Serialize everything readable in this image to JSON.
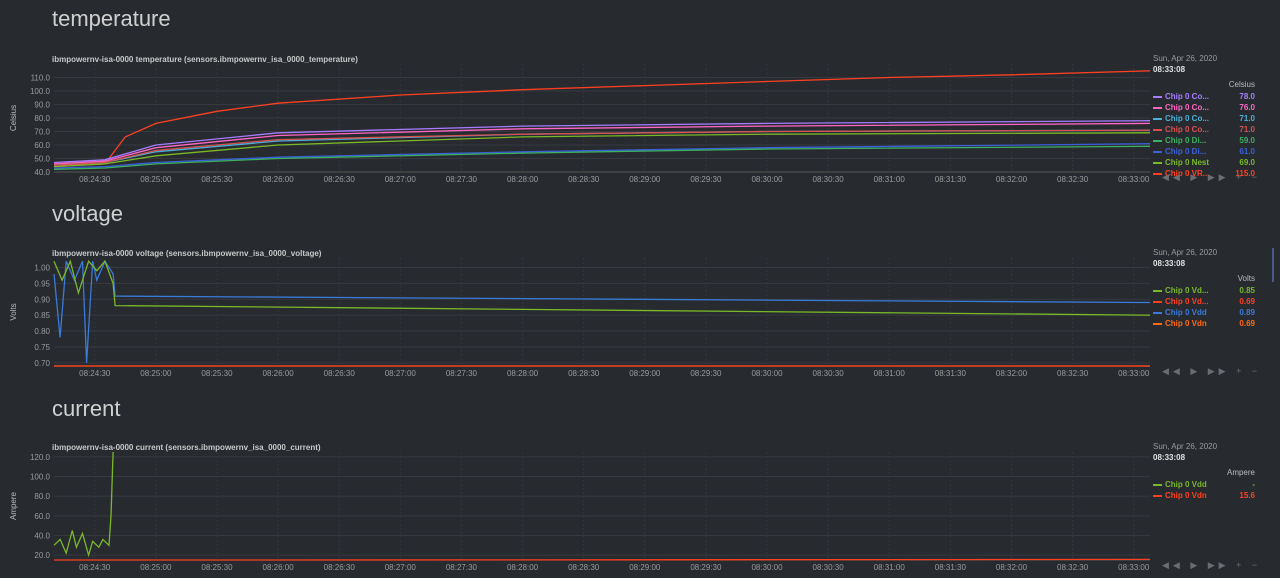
{
  "sections": [
    {
      "heading": "temperature",
      "chart_title": "ibmpowernv-isa-0000 temperature (sensors.ibmpowernv_isa_0000_temperature)",
      "legend": {
        "date": "Sun, Apr 26, 2020",
        "time": "08:33:08",
        "unit": "Celsius",
        "items": [
          {
            "name": "Chip 0 Co...",
            "value": "78.0",
            "color": "#a77cff"
          },
          {
            "name": "Chip 0 Co...",
            "value": "76.0",
            "color": "#ff66c4"
          },
          {
            "name": "Chip 0 Co...",
            "value": "71.0",
            "color": "#4ab0d8"
          },
          {
            "name": "Chip 0 Co...",
            "value": "71.0",
            "color": "#d85050"
          },
          {
            "name": "Chip 0 Di...",
            "value": "59.0",
            "color": "#3cb060"
          },
          {
            "name": "Chip 0 Di...",
            "value": "61.0",
            "color": "#3a60d8"
          },
          {
            "name": "Chip 0 Nest",
            "value": "69.0",
            "color": "#7ab828"
          },
          {
            "name": "Chip 0 VR...",
            "value": "115.0",
            "color": "#ff4020"
          }
        ]
      },
      "controls": "◀◀ ▶ ▶▶ + −"
    },
    {
      "heading": "voltage",
      "chart_title": "ibmpowernv-isa-0000 voltage (sensors.ibmpowernv_isa_0000_voltage)",
      "legend": {
        "date": "Sun, Apr 26, 2020",
        "time": "08:33:08",
        "unit": "Volts",
        "items": [
          {
            "name": "Chip 0 Vd...",
            "value": "0.85",
            "color": "#7ab828"
          },
          {
            "name": "Chip 0 Vd...",
            "value": "0.69",
            "color": "#ff4020"
          },
          {
            "name": "Chip 0 Vdd",
            "value": "0.89",
            "color": "#3a7ad8"
          },
          {
            "name": "Chip 0 Vdn",
            "value": "0.69",
            "color": "#ff6a10"
          }
        ]
      },
      "controls": "◀◀ ▶ ▶▶ + −"
    },
    {
      "heading": "current",
      "chart_title": "ibmpowernv-isa-0000 current (sensors.ibmpowernv_isa_0000_current)",
      "legend": {
        "date": "Sun, Apr 26, 2020",
        "time": "08:33:08",
        "unit": "Ampere",
        "items": [
          {
            "name": "Chip 0 Vdd",
            "value": "-",
            "color": "#7ab828"
          },
          {
            "name": "Chip 0 Vdn",
            "value": "15.6",
            "color": "#ff4020"
          }
        ]
      },
      "controls": "◀◀ ▶ ▶▶ + −"
    }
  ],
  "chart_data": [
    {
      "type": "line",
      "title": "ibmpowernv-isa-0000 temperature (sensors.ibmpowernv_isa_0000_temperature)",
      "ylabel": "Celsius",
      "ylim": [
        40,
        120
      ],
      "yticks": [
        "40.0",
        "50.0",
        "60.0",
        "70.0",
        "80.0",
        "90.0",
        "100.0",
        "110.0"
      ],
      "xticks": [
        "08:24:30",
        "08:25:00",
        "08:25:30",
        "08:26:00",
        "08:26:30",
        "08:27:00",
        "08:27:30",
        "08:28:00",
        "08:28:30",
        "08:29:00",
        "08:29:30",
        "08:30:00",
        "08:30:30",
        "08:31:00",
        "08:31:30",
        "08:32:00",
        "08:32:30",
        "08:33:00"
      ],
      "xlim": [
        "08:24:10",
        "08:33:08"
      ],
      "series": [
        {
          "name": "Chip 0 VR...",
          "color": "#ff4020",
          "x": [
            "08:24:10",
            "08:24:35",
            "08:24:45",
            "08:25:00",
            "08:25:30",
            "08:26:00",
            "08:27:00",
            "08:28:00",
            "08:29:00",
            "08:30:00",
            "08:31:00",
            "08:32:00",
            "08:33:08"
          ],
          "y": [
            44,
            46,
            66,
            76,
            85,
            91,
            97,
            101,
            104,
            107,
            110,
            112,
            115
          ]
        },
        {
          "name": "Chip 0 Co...",
          "color": "#a77cff",
          "x": [
            "08:24:10",
            "08:24:35",
            "08:25:00",
            "08:26:00",
            "08:28:00",
            "08:30:00",
            "08:33:08"
          ],
          "y": [
            47,
            49,
            60,
            69,
            74,
            76,
            78
          ]
        },
        {
          "name": "Chip 0 Co...",
          "color": "#ff66c4",
          "x": [
            "08:24:10",
            "08:24:35",
            "08:25:00",
            "08:26:00",
            "08:28:00",
            "08:30:00",
            "08:33:08"
          ],
          "y": [
            46,
            48,
            58,
            67,
            72,
            74,
            76
          ]
        },
        {
          "name": "Chip 0 Co...",
          "color": "#4ab0d8",
          "x": [
            "08:24:10",
            "08:24:35",
            "08:25:00",
            "08:26:00",
            "08:28:00",
            "08:30:00",
            "08:33:08"
          ],
          "y": [
            45,
            47,
            55,
            63,
            68,
            70,
            71
          ]
        },
        {
          "name": "Chip 0 Co...",
          "color": "#d85050",
          "x": [
            "08:24:10",
            "08:24:35",
            "08:25:00",
            "08:26:00",
            "08:28:00",
            "08:30:00",
            "08:33:08"
          ],
          "y": [
            45,
            47,
            56,
            64,
            68,
            70,
            71
          ]
        },
        {
          "name": "Chip 0 Nest",
          "color": "#7ab828",
          "x": [
            "08:24:10",
            "08:24:35",
            "08:25:00",
            "08:26:00",
            "08:28:00",
            "08:30:00",
            "08:33:08"
          ],
          "y": [
            44,
            46,
            52,
            60,
            66,
            68,
            69
          ]
        },
        {
          "name": "Chip 0 Di...",
          "color": "#3a60d8",
          "x": [
            "08:24:10",
            "08:24:35",
            "08:25:00",
            "08:26:00",
            "08:28:00",
            "08:30:00",
            "08:33:08"
          ],
          "y": [
            43,
            44,
            47,
            51,
            55,
            58,
            61
          ]
        },
        {
          "name": "Chip 0 Di...",
          "color": "#3cb060",
          "x": [
            "08:24:10",
            "08:24:35",
            "08:25:00",
            "08:26:00",
            "08:28:00",
            "08:30:00",
            "08:33:08"
          ],
          "y": [
            42,
            43,
            46,
            50,
            54,
            57,
            59
          ]
        }
      ]
    },
    {
      "type": "line",
      "title": "ibmpowernv-isa-0000 voltage (sensors.ibmpowernv_isa_0000_voltage)",
      "ylabel": "Volts",
      "ylim": [
        0.69,
        1.03
      ],
      "yticks": [
        "0.70",
        "0.75",
        "0.80",
        "0.85",
        "0.90",
        "0.95",
        "1.00"
      ],
      "xticks": [
        "08:24:30",
        "08:25:00",
        "08:25:30",
        "08:26:00",
        "08:26:30",
        "08:27:00",
        "08:27:30",
        "08:28:00",
        "08:28:30",
        "08:29:00",
        "08:29:30",
        "08:30:00",
        "08:30:30",
        "08:31:00",
        "08:31:30",
        "08:32:00",
        "08:32:30",
        "08:33:00"
      ],
      "xlim": [
        "08:24:10",
        "08:33:08"
      ],
      "series": [
        {
          "name": "Chip 0 Vdd",
          "color": "#3a7ad8",
          "x": [
            "08:24:10",
            "08:24:13",
            "08:24:16",
            "08:24:20",
            "08:24:24",
            "08:24:26",
            "08:24:29",
            "08:24:31",
            "08:24:35",
            "08:24:39",
            "08:24:40",
            "08:33:08"
          ],
          "y": [
            0.98,
            0.78,
            1.02,
            0.96,
            1.02,
            0.7,
            1.02,
            0.96,
            1.02,
            0.98,
            0.91,
            0.89
          ]
        },
        {
          "name": "Chip 0 Vd...",
          "color": "#7ab828",
          "x": [
            "08:24:10",
            "08:24:14",
            "08:24:18",
            "08:24:22",
            "08:24:27",
            "08:24:31",
            "08:24:35",
            "08:24:39",
            "08:24:40",
            "08:33:08"
          ],
          "y": [
            1.02,
            0.96,
            1.02,
            0.92,
            1.02,
            0.99,
            1.02,
            0.95,
            0.88,
            0.85
          ]
        },
        {
          "name": "Chip 0 Vdn",
          "color": "#ff6a10",
          "x": [
            "08:24:10",
            "08:33:08"
          ],
          "y": [
            0.69,
            0.69
          ]
        },
        {
          "name": "Chip 0 Vd...",
          "color": "#ff4020",
          "x": [
            "08:24:10",
            "08:33:08"
          ],
          "y": [
            0.69,
            0.69
          ]
        }
      ]
    },
    {
      "type": "line",
      "title": "ibmpowernv-isa-0000 current (sensors.ibmpowernv_isa_0000_current)",
      "ylabel": "Ampere",
      "ylim": [
        15,
        125
      ],
      "yticks": [
        "20.0",
        "40.0",
        "60.0",
        "80.0",
        "100.0",
        "120.0"
      ],
      "xticks": [
        "08:24:30",
        "08:25:00",
        "08:25:30",
        "08:26:00",
        "08:26:30",
        "08:27:00",
        "08:27:30",
        "08:28:00",
        "08:28:30",
        "08:29:00",
        "08:29:30",
        "08:30:00",
        "08:30:30",
        "08:31:00",
        "08:31:30",
        "08:32:00",
        "08:32:30",
        "08:33:00"
      ],
      "xlim": [
        "08:24:10",
        "08:33:08"
      ],
      "series": [
        {
          "name": "Chip 0 Vdd",
          "color": "#7ab828",
          "x": [
            "08:24:10",
            "08:24:13",
            "08:24:16",
            "08:24:19",
            "08:24:21",
            "08:24:24",
            "08:24:27",
            "08:24:29",
            "08:24:32",
            "08:24:34",
            "08:24:37",
            "08:24:38",
            "08:24:39"
          ],
          "y": [
            30,
            36,
            22,
            45,
            28,
            42,
            20,
            34,
            28,
            36,
            30,
            60,
            125
          ]
        },
        {
          "name": "Chip 0 Vdn",
          "color": "#ff4020",
          "x": [
            "08:24:10",
            "08:26:00",
            "08:28:00",
            "08:30:00",
            "08:33:08"
          ],
          "y": [
            14.5,
            14.9,
            15.1,
            15.3,
            15.6
          ]
        }
      ]
    }
  ]
}
